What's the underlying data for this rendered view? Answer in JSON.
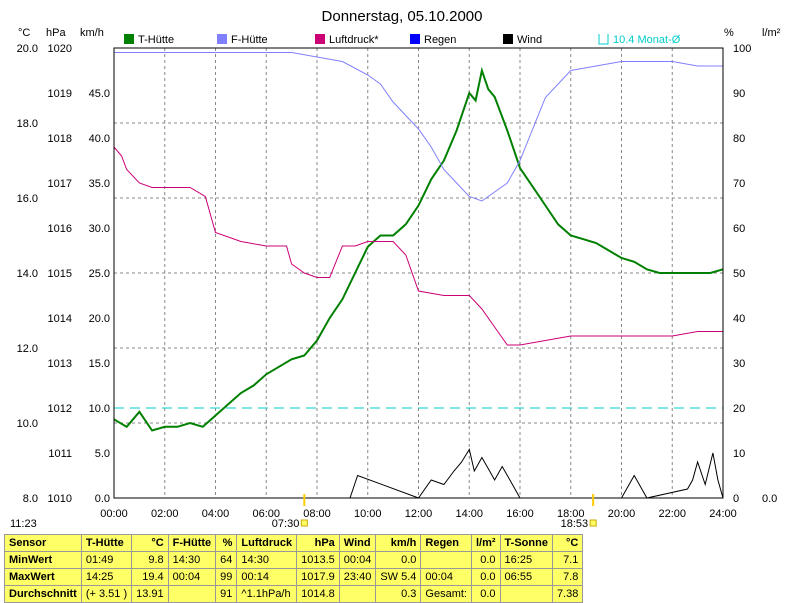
{
  "chart_data": {
    "type": "line",
    "title": "Donnerstag, 05.10.2000",
    "axes": {
      "left_temp": {
        "unit": "°C",
        "ticks": [
          "20.0",
          "18.0",
          "16.0",
          "14.0",
          "12.0",
          "10.0",
          "8.0"
        ],
        "range": [
          8,
          20
        ]
      },
      "left_hpa": {
        "unit": "hPa",
        "ticks": [
          "1020",
          "1019",
          "1018",
          "1017",
          "1016",
          "1015",
          "1014",
          "1013",
          "1012",
          "1011",
          "1010"
        ],
        "range": [
          1010,
          1020
        ]
      },
      "left_kmh": {
        "unit": "km/h",
        "ticks": [
          "45.0",
          "40.0",
          "35.0",
          "30.0",
          "25.0",
          "20.0",
          "15.0",
          "10.0",
          "5.0",
          "0.0"
        ],
        "range": [
          0,
          50
        ]
      },
      "right_pct": {
        "unit": "%",
        "ticks": [
          "100",
          "90",
          "80",
          "70",
          "60",
          "50",
          "40",
          "30",
          "20",
          "10",
          "0"
        ],
        "range": [
          0,
          100
        ]
      },
      "right_rain": {
        "unit": "l/m²",
        "ticks": [
          "0.0"
        ]
      },
      "x_ticks": [
        "00:00",
        "02:00",
        "04:00",
        "06:00",
        "08:00",
        "10:00",
        "12:00",
        "14:00",
        "16:00",
        "18:00",
        "20:00",
        "22:00",
        "24:00"
      ]
    },
    "legend": [
      {
        "name": "T-Hütte",
        "color": "#008000"
      },
      {
        "name": "F-Hütte",
        "color": "#8080ff"
      },
      {
        "name": "Luftdruck*",
        "color": "#cc0077"
      },
      {
        "name": "Regen",
        "color": "#0000ff"
      },
      {
        "name": "Wind",
        "color": "#000000"
      },
      {
        "name": "10.4 Monat-Ø",
        "color": "#00cccc"
      }
    ],
    "series": [
      {
        "name": "T-Hütte",
        "unit": "°C",
        "x": [
          0,
          0.5,
          1,
          1.5,
          2,
          2.5,
          3,
          3.5,
          4,
          4.5,
          5,
          5.5,
          6,
          6.5,
          7,
          7.5,
          8,
          8.5,
          9,
          9.5,
          10,
          10.5,
          11,
          11.5,
          12,
          12.5,
          13,
          13.5,
          14,
          14.25,
          14.5,
          14.75,
          15,
          15.5,
          16,
          16.5,
          17,
          17.5,
          18,
          18.5,
          19,
          19.5,
          20,
          20.5,
          21,
          21.5,
          22,
          22.5,
          23,
          23.5,
          24
        ],
        "y": [
          10.1,
          9.9,
          10.3,
          9.8,
          9.9,
          9.9,
          10.0,
          9.9,
          10.2,
          10.5,
          10.8,
          11.0,
          11.3,
          11.5,
          11.7,
          11.8,
          12.2,
          12.8,
          13.3,
          14.0,
          14.7,
          15.0,
          15.0,
          15.3,
          15.8,
          16.5,
          17.0,
          17.8,
          18.8,
          18.6,
          19.4,
          18.9,
          18.7,
          17.8,
          16.8,
          16.3,
          15.8,
          15.3,
          15.0,
          14.9,
          14.8,
          14.6,
          14.4,
          14.3,
          14.1,
          14.0,
          14.0,
          14.0,
          14.0,
          14.0,
          14.1
        ]
      },
      {
        "name": "F-Hütte",
        "unit": "%",
        "x": [
          0,
          1,
          2,
          3,
          4,
          5,
          6,
          7,
          8,
          9,
          10,
          10.5,
          11,
          11.5,
          12,
          12.5,
          13,
          13.5,
          14,
          14.5,
          15,
          15.5,
          16,
          16.5,
          17,
          18,
          19,
          20,
          21,
          22,
          23,
          24
        ],
        "y": [
          99,
          99,
          99,
          99,
          99,
          99,
          99,
          99,
          98,
          97,
          94,
          92,
          88,
          85,
          82,
          78,
          73,
          70,
          67,
          66,
          68,
          70,
          75,
          82,
          89,
          95,
          96,
          97,
          97,
          97,
          96,
          96
        ]
      },
      {
        "name": "Luftdruck*",
        "unit": "hPa",
        "x": [
          0,
          0.3,
          0.5,
          1,
          1.5,
          2,
          3,
          3.6,
          4,
          5,
          6,
          6.8,
          7,
          7.5,
          8,
          8.5,
          9,
          9.5,
          10,
          10.5,
          11,
          11.5,
          12,
          13,
          14,
          14.5,
          15,
          15.5,
          16,
          17,
          18,
          19,
          20,
          21,
          22,
          23,
          24
        ],
        "y": [
          1017.8,
          1017.6,
          1017.3,
          1017.0,
          1016.9,
          1016.9,
          1016.9,
          1016.7,
          1015.9,
          1015.7,
          1015.6,
          1015.6,
          1015.2,
          1015.0,
          1014.9,
          1014.9,
          1015.6,
          1015.6,
          1015.7,
          1015.7,
          1015.7,
          1015.4,
          1014.6,
          1014.5,
          1014.5,
          1014.2,
          1013.8,
          1013.4,
          1013.4,
          1013.5,
          1013.6,
          1013.6,
          1013.6,
          1013.6,
          1013.6,
          1013.7,
          1013.7
        ]
      },
      {
        "name": "Wind",
        "unit": "km/h",
        "x": [
          0,
          9.3,
          9.6,
          12,
          12.5,
          13,
          13.4,
          13.7,
          14,
          14.2,
          14.5,
          14.8,
          15,
          15.3,
          15.6,
          16,
          20,
          20.5,
          21,
          22.6,
          22.8,
          23,
          23.3,
          23.6,
          23.8,
          24
        ],
        "y": [
          0,
          0,
          2.5,
          0,
          2,
          1.5,
          3,
          4,
          5.4,
          3,
          4.5,
          3,
          2,
          3.5,
          2,
          0,
          0,
          2.5,
          0,
          1,
          2,
          4,
          1.5,
          5,
          2,
          0
        ]
      },
      {
        "name": "10.4 Monat-Ø",
        "unit": "°C",
        "x": [
          0,
          24
        ],
        "y": [
          10.4,
          10.4
        ]
      }
    ],
    "markers": [
      {
        "time": "07:30",
        "label": "07:30"
      },
      {
        "time": "18:53",
        "label": "18:53"
      }
    ],
    "corner_time": "11:23"
  },
  "stats": {
    "headers": [
      {
        "name": "Sensor",
        "unit": ""
      },
      {
        "name": "T-Hütte",
        "unit": "°C"
      },
      {
        "name": "F-Hütte",
        "unit": "%"
      },
      {
        "name": "Luftdruck",
        "unit": "hPa"
      },
      {
        "name": "Wind",
        "unit": "km/h"
      },
      {
        "name": "Regen",
        "unit": "l/m²"
      },
      {
        "name": "T-Sonne",
        "unit": "°C"
      }
    ],
    "rows": [
      {
        "label": "MinWert",
        "cells": [
          [
            "01:49",
            "9.8"
          ],
          [
            "14:30",
            "64"
          ],
          [
            "14:30",
            "1013.5"
          ],
          [
            "00:04",
            "0.0"
          ],
          [
            "",
            "0.0"
          ],
          [
            "16:25",
            "7.1"
          ]
        ]
      },
      {
        "label": "MaxWert",
        "cells": [
          [
            "14:25",
            "19.4"
          ],
          [
            "00:04",
            "99"
          ],
          [
            "00:14",
            "1017.9"
          ],
          [
            "23:40",
            "SW 5.4"
          ],
          [
            "00:04",
            "0.0"
          ],
          [
            "06:55",
            "7.8"
          ]
        ]
      },
      {
        "label": "Durchschnitt",
        "cells": [
          [
            "(+ 3.51 )",
            "13.91"
          ],
          [
            "",
            "91"
          ],
          [
            "^1.1hPa/h",
            "1014.8"
          ],
          [
            "",
            "0.3"
          ],
          [
            "Gesamt:",
            "0.0"
          ],
          [
            "",
            "7.38"
          ]
        ]
      }
    ]
  }
}
